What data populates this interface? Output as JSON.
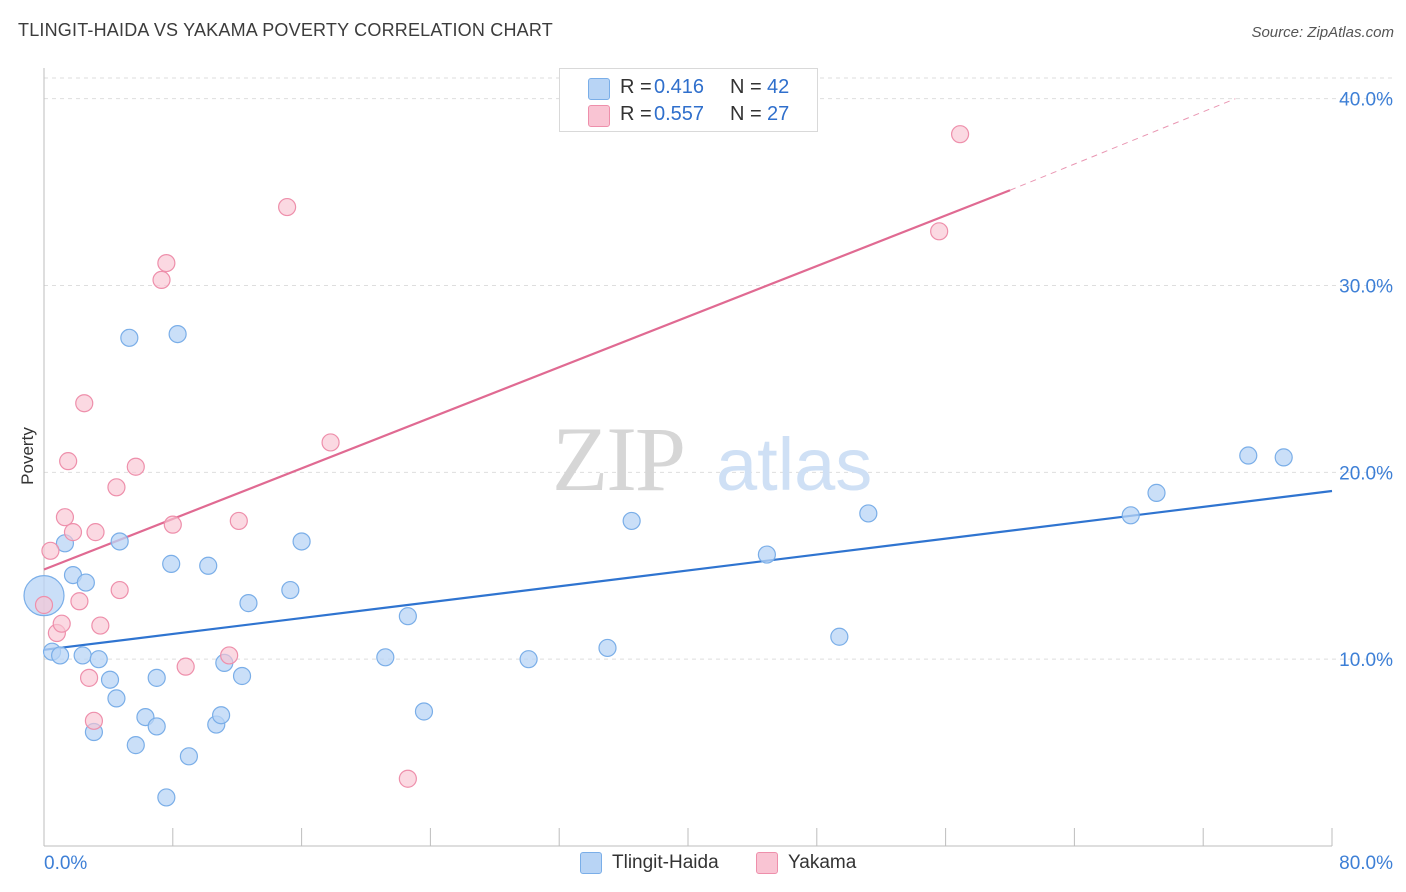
{
  "title": "TLINGIT-HAIDA VS YAKAMA POVERTY CORRELATION CHART",
  "source": "Source: ZipAtlas.com",
  "watermark": {
    "zip": "ZIP",
    "atlas": "atlas"
  },
  "legend": {
    "r_label": "R =",
    "n_label": "N =",
    "rows": [
      {
        "name": "Tlingit-Haida",
        "r": "0.416",
        "n": "42"
      },
      {
        "name": "Yakama",
        "r": "0.557",
        "n": "27"
      }
    ]
  },
  "colors": {
    "blue_fill": "#b8d4f5",
    "blue_stroke": "#7aaee8",
    "blue_line": "#2f74d0",
    "pink_fill": "#f9c4d3",
    "pink_stroke": "#ee8fab",
    "pink_line": "#e06a92",
    "value_text": "#2f6fcc",
    "axis_text": "#3d7fd6"
  },
  "chart_data": {
    "type": "scatter",
    "title": "TLINGIT-HAIDA VS YAKAMA POVERTY CORRELATION CHART",
    "xlabel": "",
    "ylabel": "Poverty",
    "xlim": [
      0,
      80
    ],
    "ylim": [
      0,
      41
    ],
    "x_tick_labels": [
      {
        "value": 0,
        "label": "0.0%"
      },
      {
        "value": 80,
        "label": "80.0%"
      }
    ],
    "y_tick_labels": [
      {
        "value": 10,
        "label": "10.0%"
      },
      {
        "value": 20,
        "label": "20.0%"
      },
      {
        "value": 30,
        "label": "30.0%"
      },
      {
        "value": 40,
        "label": "40.0%"
      }
    ],
    "grid": true,
    "legend_position": "top-center",
    "series": [
      {
        "name": "Tlingit-Haida",
        "r": 0.416,
        "n": 42,
        "trend": {
          "x0": 0,
          "y0": 10.5,
          "x1": 80,
          "y1": 19.0
        },
        "points": [
          [
            0.0,
            13.4
          ],
          [
            0.5,
            10.4
          ],
          [
            1.0,
            10.2
          ],
          [
            1.3,
            16.2
          ],
          [
            1.8,
            14.5
          ],
          [
            2.4,
            10.2
          ],
          [
            2.6,
            14.1
          ],
          [
            3.1,
            6.1
          ],
          [
            3.4,
            10.0
          ],
          [
            4.1,
            8.9
          ],
          [
            4.5,
            7.9
          ],
          [
            4.7,
            16.3
          ],
          [
            5.3,
            27.2
          ],
          [
            5.7,
            5.4
          ],
          [
            6.3,
            6.9
          ],
          [
            7.0,
            6.4
          ],
          [
            7.0,
            9.0
          ],
          [
            7.6,
            2.6
          ],
          [
            7.9,
            15.1
          ],
          [
            8.3,
            27.4
          ],
          [
            9.0,
            4.8
          ],
          [
            10.2,
            15.0
          ],
          [
            10.7,
            6.5
          ],
          [
            11.0,
            7.0
          ],
          [
            11.2,
            9.8
          ],
          [
            12.3,
            9.1
          ],
          [
            12.7,
            13.0
          ],
          [
            15.3,
            13.7
          ],
          [
            16.0,
            16.3
          ],
          [
            21.2,
            10.1
          ],
          [
            22.6,
            12.3
          ],
          [
            23.6,
            7.2
          ],
          [
            30.1,
            10.0
          ],
          [
            35.0,
            10.6
          ],
          [
            36.5,
            17.4
          ],
          [
            44.9,
            15.6
          ],
          [
            49.4,
            11.2
          ],
          [
            51.2,
            17.8
          ],
          [
            67.5,
            17.7
          ],
          [
            69.1,
            18.9
          ],
          [
            74.8,
            20.9
          ],
          [
            77.0,
            20.8
          ]
        ]
      },
      {
        "name": "Yakama",
        "r": 0.557,
        "n": 27,
        "trend": {
          "x0": 0,
          "y0": 14.8,
          "x1": 60,
          "y1": 35.1
        },
        "trend_extension": {
          "x0": 60,
          "y0": 35.1,
          "x1": 74,
          "y1": 40.0
        },
        "points": [
          [
            0.0,
            12.9
          ],
          [
            0.4,
            15.8
          ],
          [
            0.8,
            11.4
          ],
          [
            1.1,
            11.9
          ],
          [
            1.3,
            17.6
          ],
          [
            1.5,
            20.6
          ],
          [
            1.8,
            16.8
          ],
          [
            2.2,
            13.1
          ],
          [
            2.5,
            23.7
          ],
          [
            2.8,
            9.0
          ],
          [
            3.1,
            6.7
          ],
          [
            3.2,
            16.8
          ],
          [
            3.5,
            11.8
          ],
          [
            4.5,
            19.2
          ],
          [
            4.7,
            13.7
          ],
          [
            5.7,
            20.3
          ],
          [
            7.3,
            30.3
          ],
          [
            7.6,
            31.2
          ],
          [
            8.0,
            17.2
          ],
          [
            8.8,
            9.6
          ],
          [
            11.5,
            10.2
          ],
          [
            12.1,
            17.4
          ],
          [
            15.1,
            34.2
          ],
          [
            17.8,
            21.6
          ],
          [
            22.6,
            3.6
          ],
          [
            55.6,
            32.9
          ],
          [
            56.9,
            38.1
          ]
        ]
      }
    ]
  }
}
